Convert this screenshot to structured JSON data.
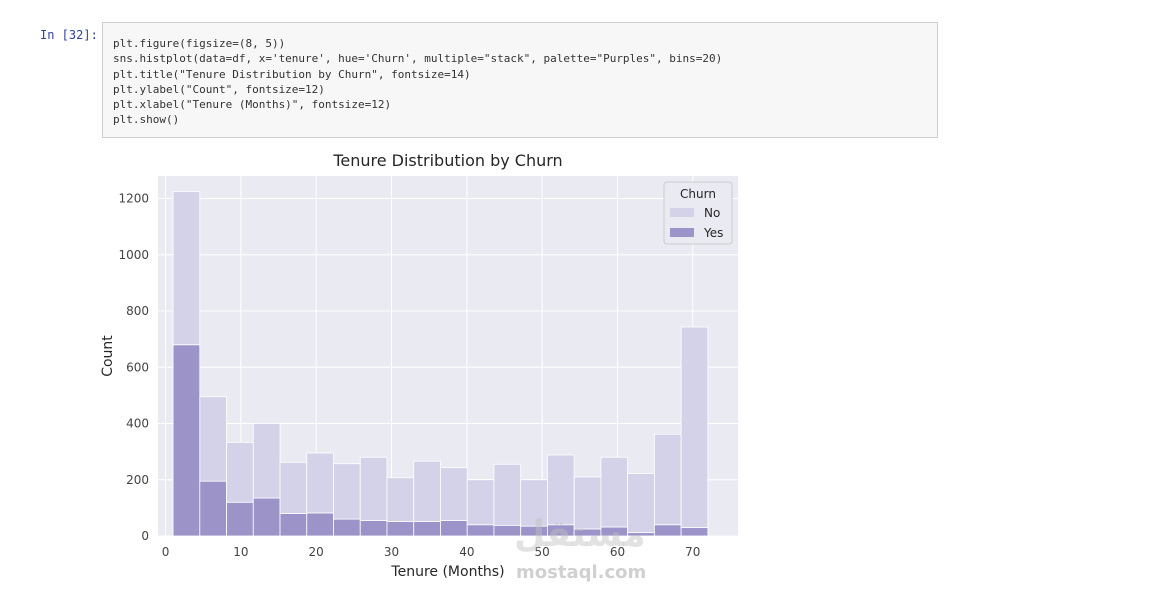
{
  "cell": {
    "prompt": "In [32]:",
    "code_lines": [
      "plt.figure(figsize=(8, 5))",
      "sns.histplot(data=df, x='tenure', hue='Churn', multiple=\"stack\", palette=\"Purples\", bins=20)",
      "plt.title(\"Tenure Distribution by Churn\", fontsize=14)",
      "plt.ylabel(\"Count\", fontsize=12)",
      "plt.xlabel(\"Tenure (Months)\", fontsize=12)",
      "plt.show()"
    ]
  },
  "watermark": {
    "arabic": "مستقل",
    "latin": "mostaql.com"
  },
  "chart_data": {
    "type": "bar",
    "stacked": true,
    "title": "Tenure Distribution by Churn",
    "xlabel": "Tenure (Months)",
    "ylabel": "Count",
    "xlim": [
      -1,
      76
    ],
    "ylim": [
      0,
      1280
    ],
    "x_ticks": [
      0,
      10,
      20,
      30,
      40,
      50,
      60,
      70
    ],
    "y_ticks": [
      0,
      200,
      400,
      600,
      800,
      1000,
      1200
    ],
    "bin_edges": [
      1,
      4.55,
      8.1,
      11.65,
      15.2,
      18.75,
      22.3,
      25.85,
      29.4,
      32.95,
      36.5,
      40.05,
      43.6,
      47.15,
      50.7,
      54.25,
      57.8,
      61.35,
      64.9,
      68.45,
      72
    ],
    "grid": true,
    "legend": {
      "title": "Churn",
      "position": "top-right"
    },
    "series": [
      {
        "name": "Yes",
        "color": "#9c94c8",
        "values": [
          680,
          195,
          120,
          135,
          80,
          82,
          60,
          55,
          52,
          52,
          55,
          40,
          38,
          35,
          40,
          25,
          32,
          12,
          40,
          30
        ]
      },
      {
        "name": "No",
        "color": "#d3d2e8",
        "values": [
          545,
          300,
          213,
          265,
          182,
          213,
          197,
          225,
          155,
          214,
          188,
          160,
          217,
          165,
          248,
          185,
          248,
          210,
          322,
          713
        ]
      }
    ],
    "colors": {
      "plot_bg": "#eaeaf2",
      "grid": "#ffffff",
      "edge": "#ffffff",
      "text": "#262626"
    }
  }
}
